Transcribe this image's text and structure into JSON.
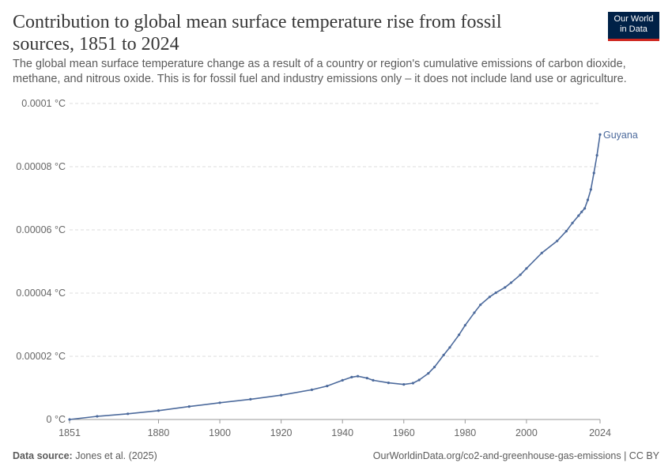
{
  "header": {
    "title": "Contribution to global mean surface temperature rise from fossil sources, 1851 to 2024",
    "subtitle": "The global mean surface temperature change as a result of a country or region's cumulative emissions of carbon dioxide, methane, and nitrous oxide. This is for fossil fuel and industry emissions only – it does not include land use or agriculture."
  },
  "logo": {
    "line1": "Our World",
    "line2": "in Data"
  },
  "footer": {
    "source_label": "Data source:",
    "source_value": "Jones et al. (2025)",
    "url": "OurWorldinData.org/co2-and-greenhouse-gas-emissions | CC BY"
  },
  "colors": {
    "series": "#4c6a9c",
    "grid": "#dddddd",
    "axis": "#666666",
    "text": "#666666"
  },
  "chart_data": {
    "type": "line",
    "title": "Contribution to global mean surface temperature rise from fossil sources, 1851 to 2024",
    "xlim": [
      1851,
      2024
    ],
    "ylim": [
      0,
      0.0001
    ],
    "x_ticks": [
      1851,
      1880,
      1900,
      1920,
      1940,
      1960,
      1980,
      2000,
      2024
    ],
    "y_ticks": [
      0,
      2e-05,
      4e-05,
      6e-05,
      8e-05,
      0.0001
    ],
    "y_tick_labels": [
      "0 °C",
      "0.00002 °C",
      "0.00004 °C",
      "0.00006 °C",
      "0.00008 °C",
      "0.0001 °C"
    ],
    "grid": true,
    "series": [
      {
        "name": "Guyana",
        "x": [
          1851,
          1860,
          1870,
          1880,
          1890,
          1900,
          1910,
          1920,
          1930,
          1935,
          1940,
          1943,
          1945,
          1948,
          1950,
          1955,
          1960,
          1963,
          1965,
          1968,
          1970,
          1973,
          1975,
          1978,
          1980,
          1983,
          1985,
          1988,
          1990,
          1993,
          1995,
          1998,
          2000,
          2005,
          2010,
          2013,
          2015,
          2017,
          2018,
          2019,
          2020,
          2021,
          2022,
          2023,
          2024
        ],
        "values": [
          0,
          1e-06,
          1.8e-06,
          2.8e-06,
          4.1e-06,
          5.3e-06,
          6.4e-06,
          7.7e-06,
          9.4e-06,
          1.06e-05,
          1.24e-05,
          1.34e-05,
          1.37e-05,
          1.31e-05,
          1.24e-05,
          1.16e-05,
          1.11e-05,
          1.15e-05,
          1.25e-05,
          1.46e-05,
          1.66e-05,
          2.04e-05,
          2.28e-05,
          2.68e-05,
          2.98e-05,
          3.38e-05,
          3.63e-05,
          3.88e-05,
          4.01e-05,
          4.18e-05,
          4.33e-05,
          4.58e-05,
          4.78e-05,
          5.27e-05,
          5.65e-05,
          5.96e-05,
          6.22e-05,
          6.45e-05,
          6.57e-05,
          6.68e-05,
          6.95e-05,
          7.28e-05,
          7.8e-05,
          8.36e-05,
          9.02e-05
        ]
      }
    ]
  }
}
